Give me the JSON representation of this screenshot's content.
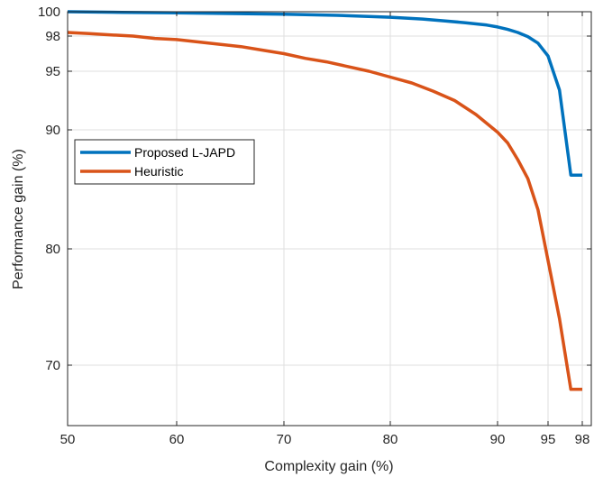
{
  "chart_data": {
    "type": "line",
    "title": "",
    "xlabel": "Complexity gain (%)",
    "ylabel": "Performance gain (%)",
    "xlim": [
      50,
      98.5
    ],
    "ylim": [
      65,
      100
    ],
    "x_scale": "stretched-high (tick spacing widens toward 98)",
    "y_scale": "stretched-high (tick spacing widens toward 100)",
    "x_ticks": [
      50,
      60,
      70,
      80,
      90,
      95,
      98
    ],
    "y_ticks": [
      70,
      80,
      90,
      95,
      98,
      100
    ],
    "x_tick_labels": [
      "50",
      "60",
      "70",
      "80",
      "90",
      "95",
      "98"
    ],
    "y_tick_labels": [
      "70",
      "80",
      "90",
      "95",
      "98",
      "100"
    ],
    "grid": true,
    "legend_position": "left",
    "series": [
      {
        "name": "Proposed L-JAPD",
        "color": "#0072BD",
        "x": [
          50,
          55,
          60,
          65,
          70,
          75,
          80,
          83,
          85,
          87,
          89,
          90,
          91,
          92,
          93,
          94,
          95,
          96,
          97,
          98
        ],
        "y": [
          100,
          99.95,
          99.9,
          99.85,
          99.8,
          99.7,
          99.55,
          99.4,
          99.25,
          99.1,
          98.9,
          98.75,
          98.55,
          98.3,
          97.95,
          97.4,
          96.3,
          93.4,
          86.2,
          86.2
        ]
      },
      {
        "name": "Heuristic",
        "color": "#D95319",
        "x": [
          50,
          52,
          54,
          56,
          58,
          60,
          62,
          64,
          66,
          68,
          70,
          72,
          74,
          76,
          78,
          80,
          82,
          84,
          86,
          88,
          90,
          91,
          92,
          93,
          94,
          95,
          96,
          97,
          98
        ],
        "y": [
          98.3,
          98.2,
          98.1,
          98.0,
          97.8,
          97.7,
          97.5,
          97.3,
          97.1,
          96.8,
          96.5,
          96.1,
          95.8,
          95.4,
          95.0,
          94.5,
          94.0,
          93.3,
          92.5,
          91.3,
          89.8,
          88.9,
          87.5,
          85.9,
          83.3,
          79.0,
          74.0,
          68.0,
          68.0
        ]
      }
    ]
  }
}
